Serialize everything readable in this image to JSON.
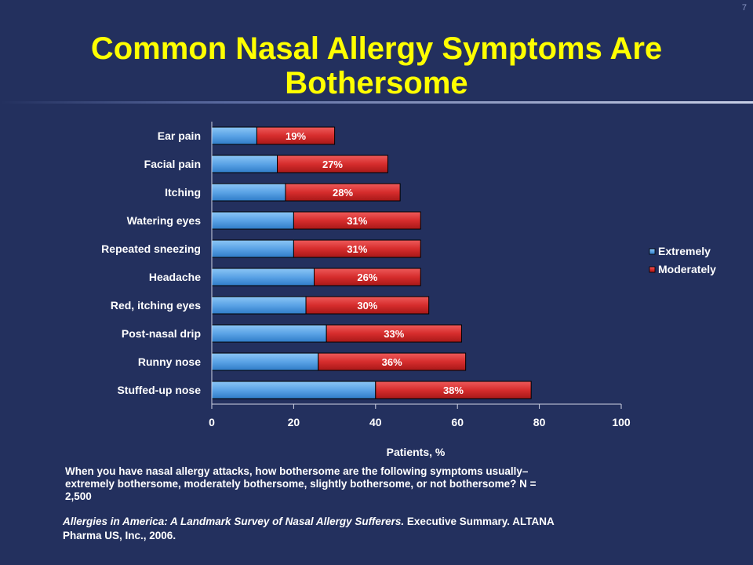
{
  "slide_number": "7",
  "title": "Common Nasal Allergy Symptoms Are Bothersome",
  "question": "When you have nasal allergy attacks, how bothersome are the following symptoms usually–extremely bothersome, moderately bothersome, slightly bothersome, or not bothersome? N = 2,500",
  "citation": {
    "italic": "Allergies in America: A Landmark Survey of Nasal Allergy Sufferers.",
    "rest": " Executive Summary. ALTANA Pharma US, Inc., 2006."
  },
  "colors": {
    "extremely": "#5ba3e6",
    "moderately": "#d62d2d",
    "background": "#23305e",
    "title": "#ffff00"
  },
  "chart_data": {
    "type": "bar",
    "orientation": "horizontal",
    "stacked": true,
    "categories": [
      "Ear pain",
      "Facial pain",
      "Itching",
      "Watering eyes",
      "Repeated sneezing",
      "Headache",
      "Red, itching eyes",
      "Post-nasal drip",
      "Runny nose",
      "Stuffed-up nose"
    ],
    "series": [
      {
        "name": "Extremely",
        "values": [
          11,
          16,
          18,
          20,
          20,
          25,
          23,
          28,
          26,
          40
        ]
      },
      {
        "name": "Moderately",
        "values": [
          19,
          27,
          28,
          31,
          31,
          26,
          30,
          33,
          36,
          38
        ]
      }
    ],
    "data_labels": [
      "19%",
      "27%",
      "28%",
      "31%",
      "31%",
      "26%",
      "30%",
      "33%",
      "36%",
      "38%"
    ],
    "xlabel": "Patients, %",
    "xlim": [
      0,
      100
    ],
    "xticks": [
      0,
      20,
      40,
      60,
      80,
      100
    ],
    "legend": "right",
    "grid": false
  }
}
